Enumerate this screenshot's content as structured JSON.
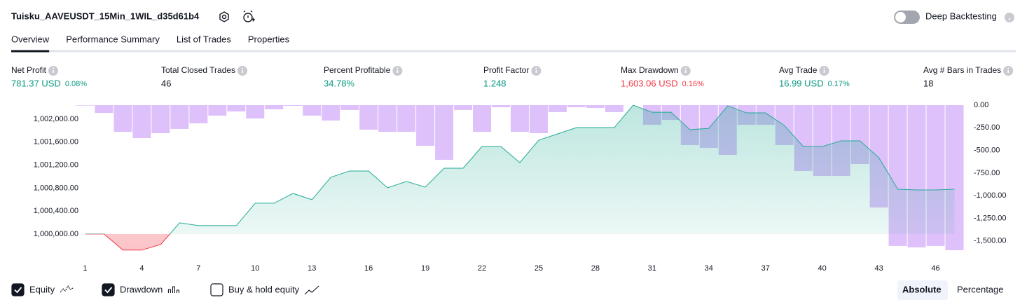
{
  "header": {
    "strategy": "Tuisku_AAVEUSDT_15Min_1WIL_d35d61b4",
    "deep_backtesting": "Deep Backtesting"
  },
  "tabs": [
    "Overview",
    "Performance Summary",
    "List of Trades",
    "Properties"
  ],
  "metrics": [
    {
      "label": "Net Profit",
      "value": "781.37 USD",
      "percent": "0.08%",
      "tone": "positive"
    },
    {
      "label": "Total Closed Trades",
      "value": "46",
      "tone": "neutral"
    },
    {
      "label": "Percent Profitable",
      "value": "34.78%",
      "tone": "positive"
    },
    {
      "label": "Profit Factor",
      "value": "1.248",
      "tone": "positive"
    },
    {
      "label": "Max Drawdown",
      "value": "1,603.06 USD",
      "percent": "0.16%",
      "tone": "negative"
    },
    {
      "label": "Avg Trade",
      "value": "16.99 USD",
      "percent": "0.17%",
      "tone": "positive"
    },
    {
      "label": "Avg # Bars in Trades",
      "value": "18",
      "tone": "neutral"
    }
  ],
  "chart_data": {
    "type": "combo",
    "x": [
      1,
      2,
      3,
      4,
      5,
      6,
      7,
      8,
      9,
      10,
      11,
      12,
      13,
      14,
      15,
      16,
      17,
      18,
      19,
      20,
      21,
      22,
      23,
      24,
      25,
      26,
      27,
      28,
      29,
      30,
      31,
      32,
      33,
      34,
      35,
      36,
      37,
      38,
      39,
      40,
      41,
      42,
      43,
      44,
      45,
      46,
      47
    ],
    "xlim": [
      0.5,
      47.5
    ],
    "xticks": [
      1,
      4,
      7,
      10,
      13,
      16,
      19,
      22,
      25,
      28,
      31,
      34,
      37,
      40,
      43,
      46
    ],
    "ylim": [
      999620,
      1002245
    ],
    "yticks": [
      {
        "value": 1000000,
        "label": "1,000,000.00"
      },
      {
        "value": 1000400,
        "label": "1,000,400.00"
      },
      {
        "value": 1000800,
        "label": "1,000,800.00"
      },
      {
        "value": 1001200,
        "label": "1,001,200.00"
      },
      {
        "value": 1001600,
        "label": "1,001,600.00"
      },
      {
        "value": 1002000,
        "label": "1,002,000.00"
      }
    ],
    "y2lim": [
      -1665,
      0
    ],
    "y2ticks": [
      {
        "value": 0,
        "label": "0.00"
      },
      {
        "value": -250,
        "label": "-250.00"
      },
      {
        "value": -500,
        "label": "-500.00"
      },
      {
        "value": -750,
        "label": "-750.00"
      },
      {
        "value": -1000,
        "label": "-1,000.00"
      },
      {
        "value": -1250,
        "label": "-1,250.00"
      },
      {
        "value": -1500,
        "label": "-1,500.00"
      }
    ],
    "baseline": 1000000,
    "series": [
      {
        "name": "Equity",
        "type": "area",
        "color": "#22ab94",
        "negative_color": "#f23645",
        "visible": true,
        "values": [
          1000000,
          1000000,
          999720,
          999720,
          999817,
          1000195,
          1000146,
          1000146,
          1000146,
          1000537,
          1000537,
          1000707,
          1000598,
          1000988,
          1001098,
          1001098,
          1000805,
          1000915,
          1000817,
          1001146,
          1001146,
          1001524,
          1001524,
          1001244,
          1001634,
          1001744,
          1001854,
          1001854,
          1001854,
          1002244,
          1002122,
          1002122,
          1001817,
          1001841,
          1002232,
          1002110,
          1002110,
          1001890,
          1001524,
          1001524,
          1001622,
          1001622,
          1001329,
          1000780,
          1000768,
          1000768,
          1000781
        ]
      },
      {
        "name": "Drawdown",
        "type": "bar",
        "axis": "y2",
        "color": "#c38ef5",
        "visible": true,
        "values": [
          -5,
          -85,
          -295,
          -364,
          -310,
          -263,
          -201,
          -116,
          -70,
          -147,
          -46,
          -8,
          -116,
          -170,
          -54,
          -271,
          -295,
          -295,
          -449,
          -604,
          -54,
          -295,
          -23,
          -295,
          -310,
          -77,
          -23,
          -31,
          -77,
          0,
          -217,
          -163,
          -441,
          -472,
          -550,
          -217,
          -217,
          -441,
          -728,
          -782,
          -782,
          -651,
          -1131,
          -1556,
          -1572,
          -1556,
          -1603
        ]
      }
    ],
    "extra_toggle": {
      "name": "Buy & hold equity",
      "visible": false
    }
  },
  "scale_modes": [
    "Absolute",
    "Percentage"
  ]
}
